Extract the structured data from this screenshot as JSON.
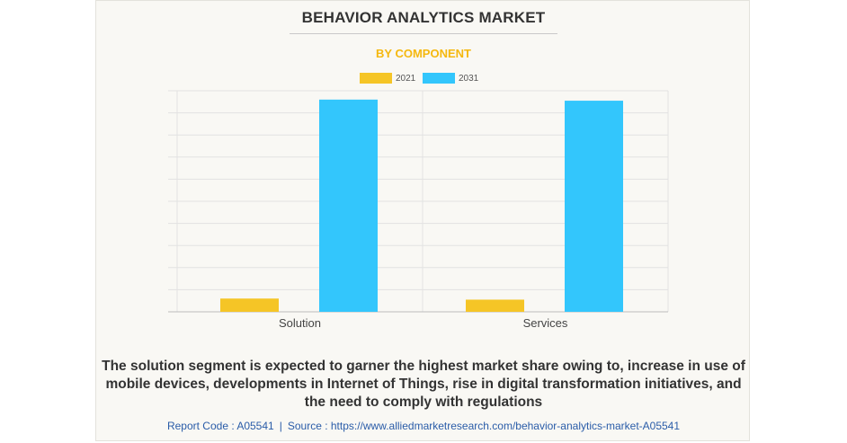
{
  "header": {
    "title": "BEHAVIOR ANALYTICS MARKET",
    "subtitle": "BY COMPONENT"
  },
  "chart_data": {
    "type": "bar",
    "categories": [
      "Solution",
      "Services"
    ],
    "series": [
      {
        "name": "2021",
        "color": "#f5c526",
        "values": [
          6,
          5.5
        ]
      },
      {
        "name": "2031",
        "color": "#33c6fc",
        "values": [
          96,
          95.5
        ]
      }
    ],
    "ylim": [
      0,
      100
    ],
    "grid": true,
    "legend": "top-center",
    "xlabel": "",
    "ylabel": ""
  },
  "caption": "The solution segment is expected to garner the highest market share owing to, increase in use of mobile devices, developments in Internet of Things, rise in digital transformation initiatives, and the need to comply with regulations",
  "footer": {
    "report_code": "Report Code : A05541",
    "separator": "|",
    "source": "Source : https://www.alliedmarketresearch.com/behavior-analytics-market-A05541"
  }
}
